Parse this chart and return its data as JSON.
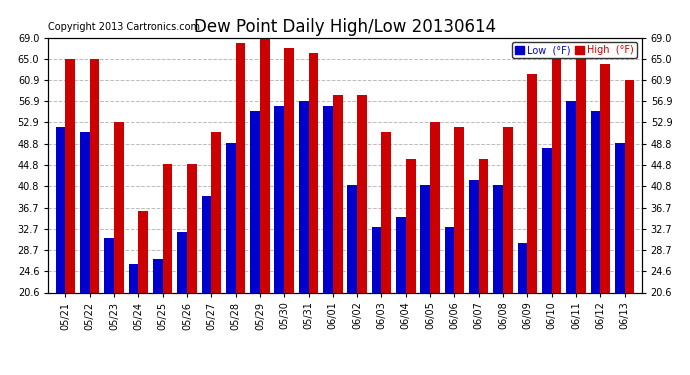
{
  "title": "Dew Point Daily High/Low 20130614",
  "copyright": "Copyright 2013 Cartronics.com",
  "background_color": "#ffffff",
  "plot_background": "#ffffff",
  "grid_color": "#bbbbbb",
  "low_color": "#0000cc",
  "high_color": "#cc0000",
  "ylim": [
    20.6,
    69.0
  ],
  "yticks": [
    20.6,
    24.6,
    28.7,
    32.7,
    36.7,
    40.8,
    44.8,
    48.8,
    52.9,
    56.9,
    60.9,
    65.0,
    69.0
  ],
  "dates": [
    "05/21",
    "05/22",
    "05/23",
    "05/24",
    "05/25",
    "05/26",
    "05/27",
    "05/28",
    "05/29",
    "05/30",
    "05/31",
    "06/01",
    "06/02",
    "06/03",
    "06/04",
    "06/05",
    "06/06",
    "06/07",
    "06/08",
    "06/09",
    "06/10",
    "06/11",
    "06/12",
    "06/13"
  ],
  "low_values": [
    52.0,
    51.0,
    31.0,
    26.0,
    27.0,
    32.0,
    39.0,
    49.0,
    55.0,
    56.0,
    57.0,
    56.0,
    41.0,
    33.0,
    35.0,
    41.0,
    33.0,
    42.0,
    41.0,
    30.0,
    48.0,
    57.0,
    55.0,
    49.0
  ],
  "high_values": [
    65.0,
    65.0,
    53.0,
    36.0,
    45.0,
    45.0,
    51.0,
    68.0,
    69.0,
    67.0,
    66.0,
    58.0,
    58.0,
    51.0,
    46.0,
    53.0,
    52.0,
    46.0,
    52.0,
    62.0,
    65.0,
    65.0,
    64.0,
    61.0
  ],
  "legend_low_label": "Low  (°F)",
  "legend_high_label": "High  (°F)",
  "title_fontsize": 12,
  "tick_fontsize": 7,
  "copyright_fontsize": 7,
  "bar_width": 0.4
}
